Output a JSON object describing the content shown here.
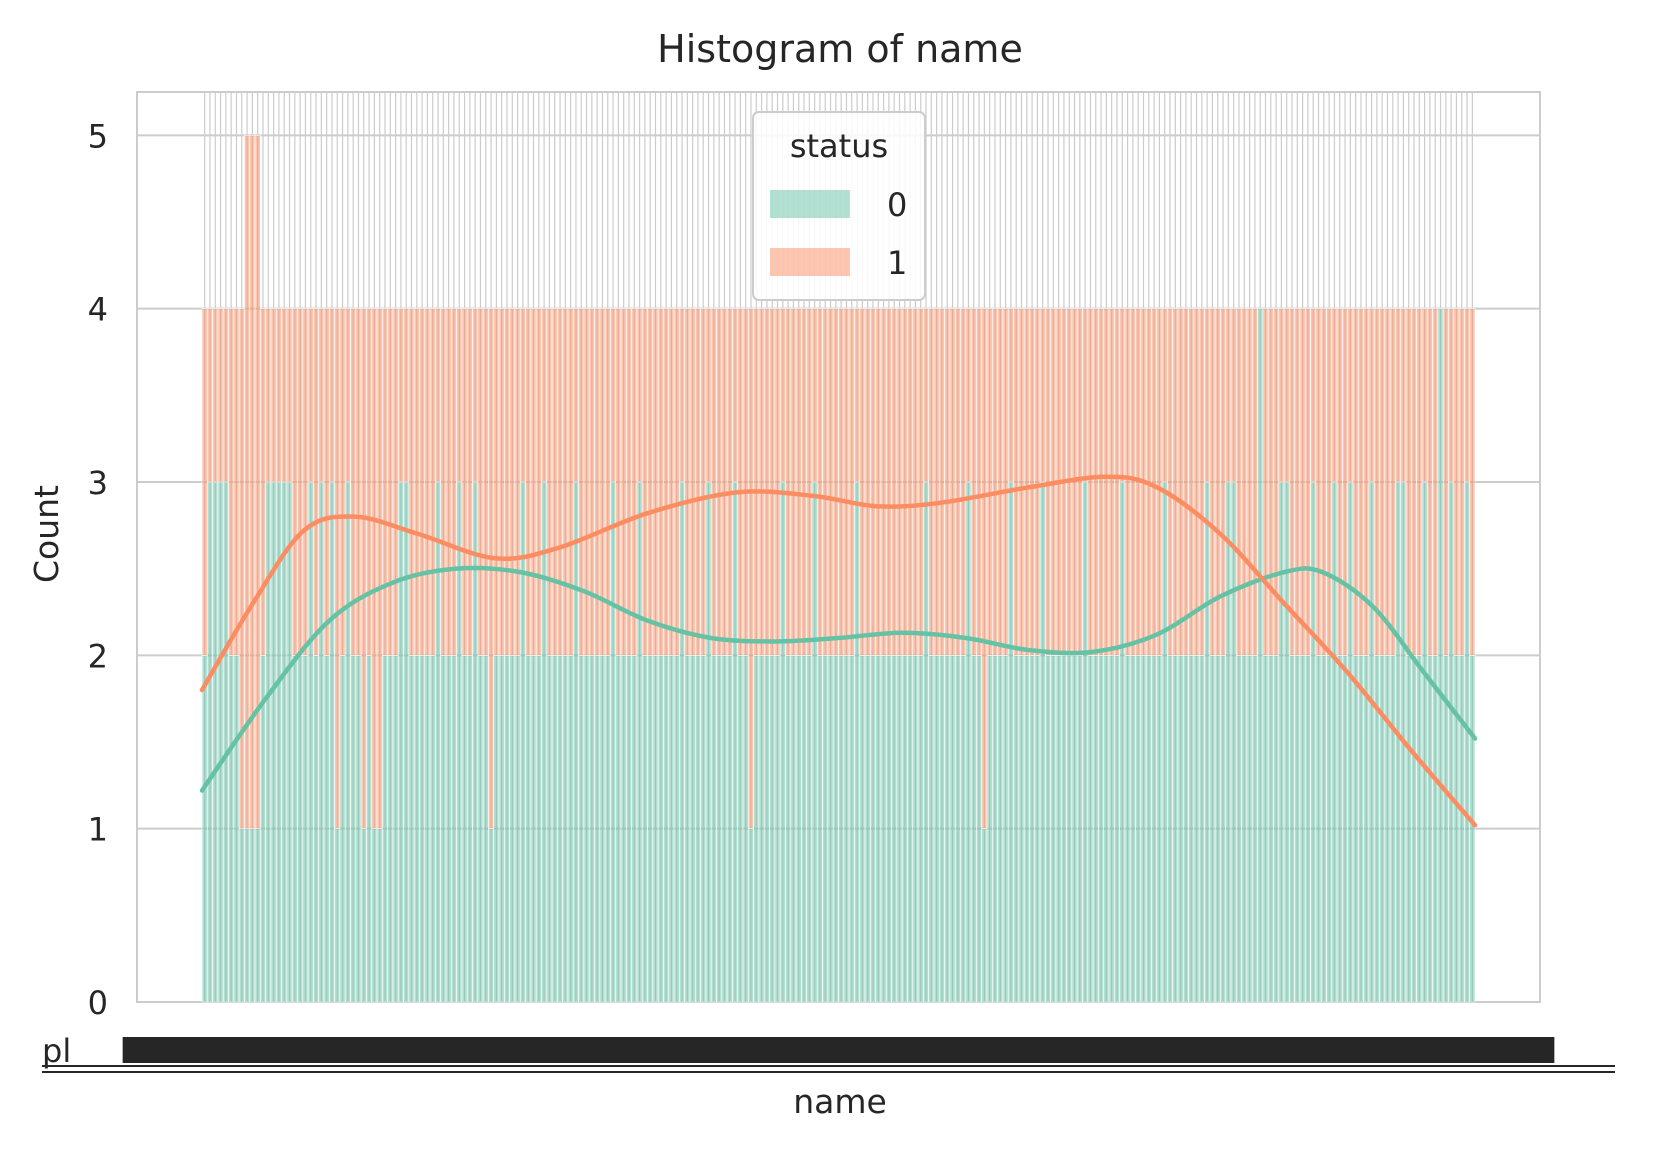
{
  "chart_data": {
    "type": "bar",
    "title": "Histogram of name",
    "xlabel": "name",
    "ylabel": "Count",
    "ylim": [
      0,
      5.25
    ],
    "yticks": [
      0,
      1,
      2,
      3,
      4,
      5
    ],
    "grid": true,
    "stacked": true,
    "legend": {
      "title": "status",
      "placement": "top-center"
    },
    "xtick_labels_note": "illegible overlapping name labels",
    "series": [
      {
        "name": "0",
        "color": "#66c2a5",
        "values": [
          2,
          3,
          3,
          3,
          3,
          2,
          2,
          1,
          1,
          1,
          1,
          2,
          3,
          3,
          3,
          3,
          3,
          2,
          2,
          2,
          3,
          2,
          3,
          2,
          3,
          1,
          2,
          3,
          2,
          2,
          1,
          2,
          1,
          1,
          2,
          2,
          2,
          3,
          3,
          2,
          2,
          2,
          2,
          2,
          3,
          2,
          2,
          2,
          3,
          2,
          2,
          3,
          2,
          2,
          1,
          2,
          2,
          2,
          2,
          2,
          3,
          2,
          2,
          2,
          3,
          2,
          2,
          2,
          2,
          2,
          3,
          2,
          2,
          2,
          2,
          2,
          2,
          3,
          2,
          2,
          2,
          2,
          3,
          2,
          2,
          2,
          2,
          2,
          2,
          2,
          3,
          2,
          2,
          2,
          2,
          3,
          2,
          2,
          2,
          2,
          3,
          2,
          2,
          1,
          2,
          2,
          2,
          2,
          2,
          3,
          2,
          2,
          2,
          2,
          2,
          3,
          2,
          2,
          2,
          2,
          2,
          2,
          2,
          3,
          2,
          2,
          2,
          2,
          2,
          2,
          2,
          2,
          2,
          2,
          2,
          2,
          3,
          2,
          2,
          2,
          2,
          2,
          2,
          2,
          3,
          2,
          2,
          1,
          2,
          2,
          2,
          2,
          3,
          2,
          2,
          2,
          2,
          2,
          3,
          2,
          2,
          2,
          2,
          2,
          2,
          2,
          3,
          2,
          2,
          2,
          2,
          2,
          2,
          3,
          2,
          2,
          2,
          2,
          2,
          2,
          2,
          3,
          2,
          2,
          2,
          2,
          2,
          2,
          2,
          3,
          2,
          2,
          2,
          3,
          3,
          2,
          2,
          2,
          2,
          4,
          2,
          2,
          2,
          3,
          3,
          2,
          2,
          2,
          2,
          3,
          2,
          2,
          2,
          3,
          2,
          2,
          3,
          2,
          2,
          2,
          3,
          2,
          2,
          2,
          2,
          3,
          3,
          2,
          2,
          2,
          3,
          2,
          2,
          4,
          2,
          3,
          2,
          2,
          3,
          2
        ]
      },
      {
        "name": "1",
        "color": "#fc8d62",
        "values": [
          2,
          1,
          1,
          1,
          1,
          2,
          2,
          3,
          4,
          4,
          4,
          2,
          1,
          1,
          1,
          1,
          1,
          2,
          2,
          2,
          1,
          2,
          1,
          2,
          1,
          3,
          2,
          1,
          2,
          2,
          3,
          2,
          3,
          3,
          2,
          2,
          2,
          1,
          1,
          2,
          2,
          2,
          2,
          2,
          1,
          2,
          2,
          2,
          1,
          2,
          2,
          1,
          2,
          2,
          3,
          2,
          2,
          2,
          2,
          2,
          1,
          2,
          2,
          2,
          1,
          2,
          2,
          2,
          2,
          2,
          1,
          2,
          2,
          2,
          2,
          2,
          2,
          1,
          2,
          2,
          2,
          2,
          1,
          2,
          2,
          2,
          2,
          2,
          2,
          2,
          1,
          2,
          2,
          2,
          2,
          1,
          2,
          2,
          2,
          2,
          1,
          2,
          2,
          3,
          2,
          2,
          2,
          2,
          2,
          1,
          2,
          2,
          2,
          2,
          2,
          1,
          2,
          2,
          2,
          2,
          2,
          2,
          2,
          1,
          2,
          2,
          2,
          2,
          2,
          2,
          2,
          2,
          2,
          2,
          2,
          2,
          1,
          2,
          2,
          2,
          2,
          2,
          2,
          2,
          1,
          2,
          2,
          3,
          2,
          2,
          2,
          2,
          1,
          2,
          2,
          2,
          2,
          2,
          1,
          2,
          2,
          2,
          2,
          2,
          2,
          2,
          1,
          2,
          2,
          2,
          2,
          2,
          2,
          1,
          2,
          2,
          2,
          2,
          2,
          2,
          2,
          1,
          2,
          2,
          2,
          2,
          2,
          2,
          2,
          1,
          2,
          2,
          2,
          1,
          1,
          2,
          2,
          2,
          2,
          0,
          2,
          2,
          2,
          1,
          1,
          2,
          2,
          2,
          2,
          1,
          2,
          2,
          2,
          1,
          2,
          2,
          1,
          2,
          2,
          2,
          1,
          2,
          2,
          2,
          2,
          1,
          1,
          2,
          2,
          2,
          1,
          2,
          2,
          0,
          2,
          1,
          2,
          2,
          1,
          2
        ]
      }
    ],
    "kde": [
      {
        "name": "0",
        "color": "#66c2a5",
        "points": [
          [
            0,
            1.22
          ],
          [
            0.05,
            1.75
          ],
          [
            0.1,
            2.2
          ],
          [
            0.15,
            2.42
          ],
          [
            0.2,
            2.5
          ],
          [
            0.25,
            2.48
          ],
          [
            0.3,
            2.37
          ],
          [
            0.35,
            2.2
          ],
          [
            0.4,
            2.1
          ],
          [
            0.45,
            2.08
          ],
          [
            0.5,
            2.1
          ],
          [
            0.55,
            2.13
          ],
          [
            0.6,
            2.1
          ],
          [
            0.65,
            2.03
          ],
          [
            0.7,
            2.02
          ],
          [
            0.75,
            2.12
          ],
          [
            0.8,
            2.34
          ],
          [
            0.85,
            2.48
          ],
          [
            0.88,
            2.48
          ],
          [
            0.92,
            2.28
          ],
          [
            0.96,
            1.9
          ],
          [
            1,
            1.52
          ]
        ]
      },
      {
        "name": "1",
        "color": "#fc8d62",
        "points": [
          [
            0,
            1.8
          ],
          [
            0.04,
            2.3
          ],
          [
            0.08,
            2.72
          ],
          [
            0.12,
            2.8
          ],
          [
            0.17,
            2.7
          ],
          [
            0.23,
            2.56
          ],
          [
            0.28,
            2.62
          ],
          [
            0.35,
            2.82
          ],
          [
            0.42,
            2.94
          ],
          [
            0.48,
            2.92
          ],
          [
            0.53,
            2.86
          ],
          [
            0.58,
            2.88
          ],
          [
            0.65,
            2.97
          ],
          [
            0.71,
            3.03
          ],
          [
            0.75,
            2.97
          ],
          [
            0.8,
            2.7
          ],
          [
            0.85,
            2.3
          ],
          [
            0.9,
            1.9
          ],
          [
            0.95,
            1.45
          ],
          [
            1,
            1.02
          ]
        ]
      }
    ]
  }
}
